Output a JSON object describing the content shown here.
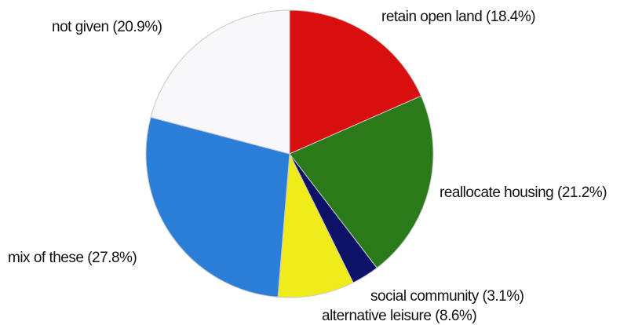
{
  "chart_data": {
    "type": "pie",
    "title": "",
    "start_angle_deg": 0,
    "direction": "clockwise",
    "slices": [
      {
        "label": "retain open land (18.4%)",
        "value": 18.4,
        "color": "#d90f0f"
      },
      {
        "label": "reallocate housing (21.2%)",
        "value": 21.2,
        "color": "#2a7a1a"
      },
      {
        "label": "social community (3.1%)",
        "value": 3.1,
        "color": "#0d1266"
      },
      {
        "label": "alternative leisure (8.6%)",
        "value": 8.6,
        "color": "#f0ec1c"
      },
      {
        "label": "mix of these (27.8%)",
        "value": 27.8,
        "color": "#2a7ed8"
      },
      {
        "label": "not given (20.9%)",
        "value": 20.9,
        "color": "#f8f8fb"
      }
    ]
  }
}
